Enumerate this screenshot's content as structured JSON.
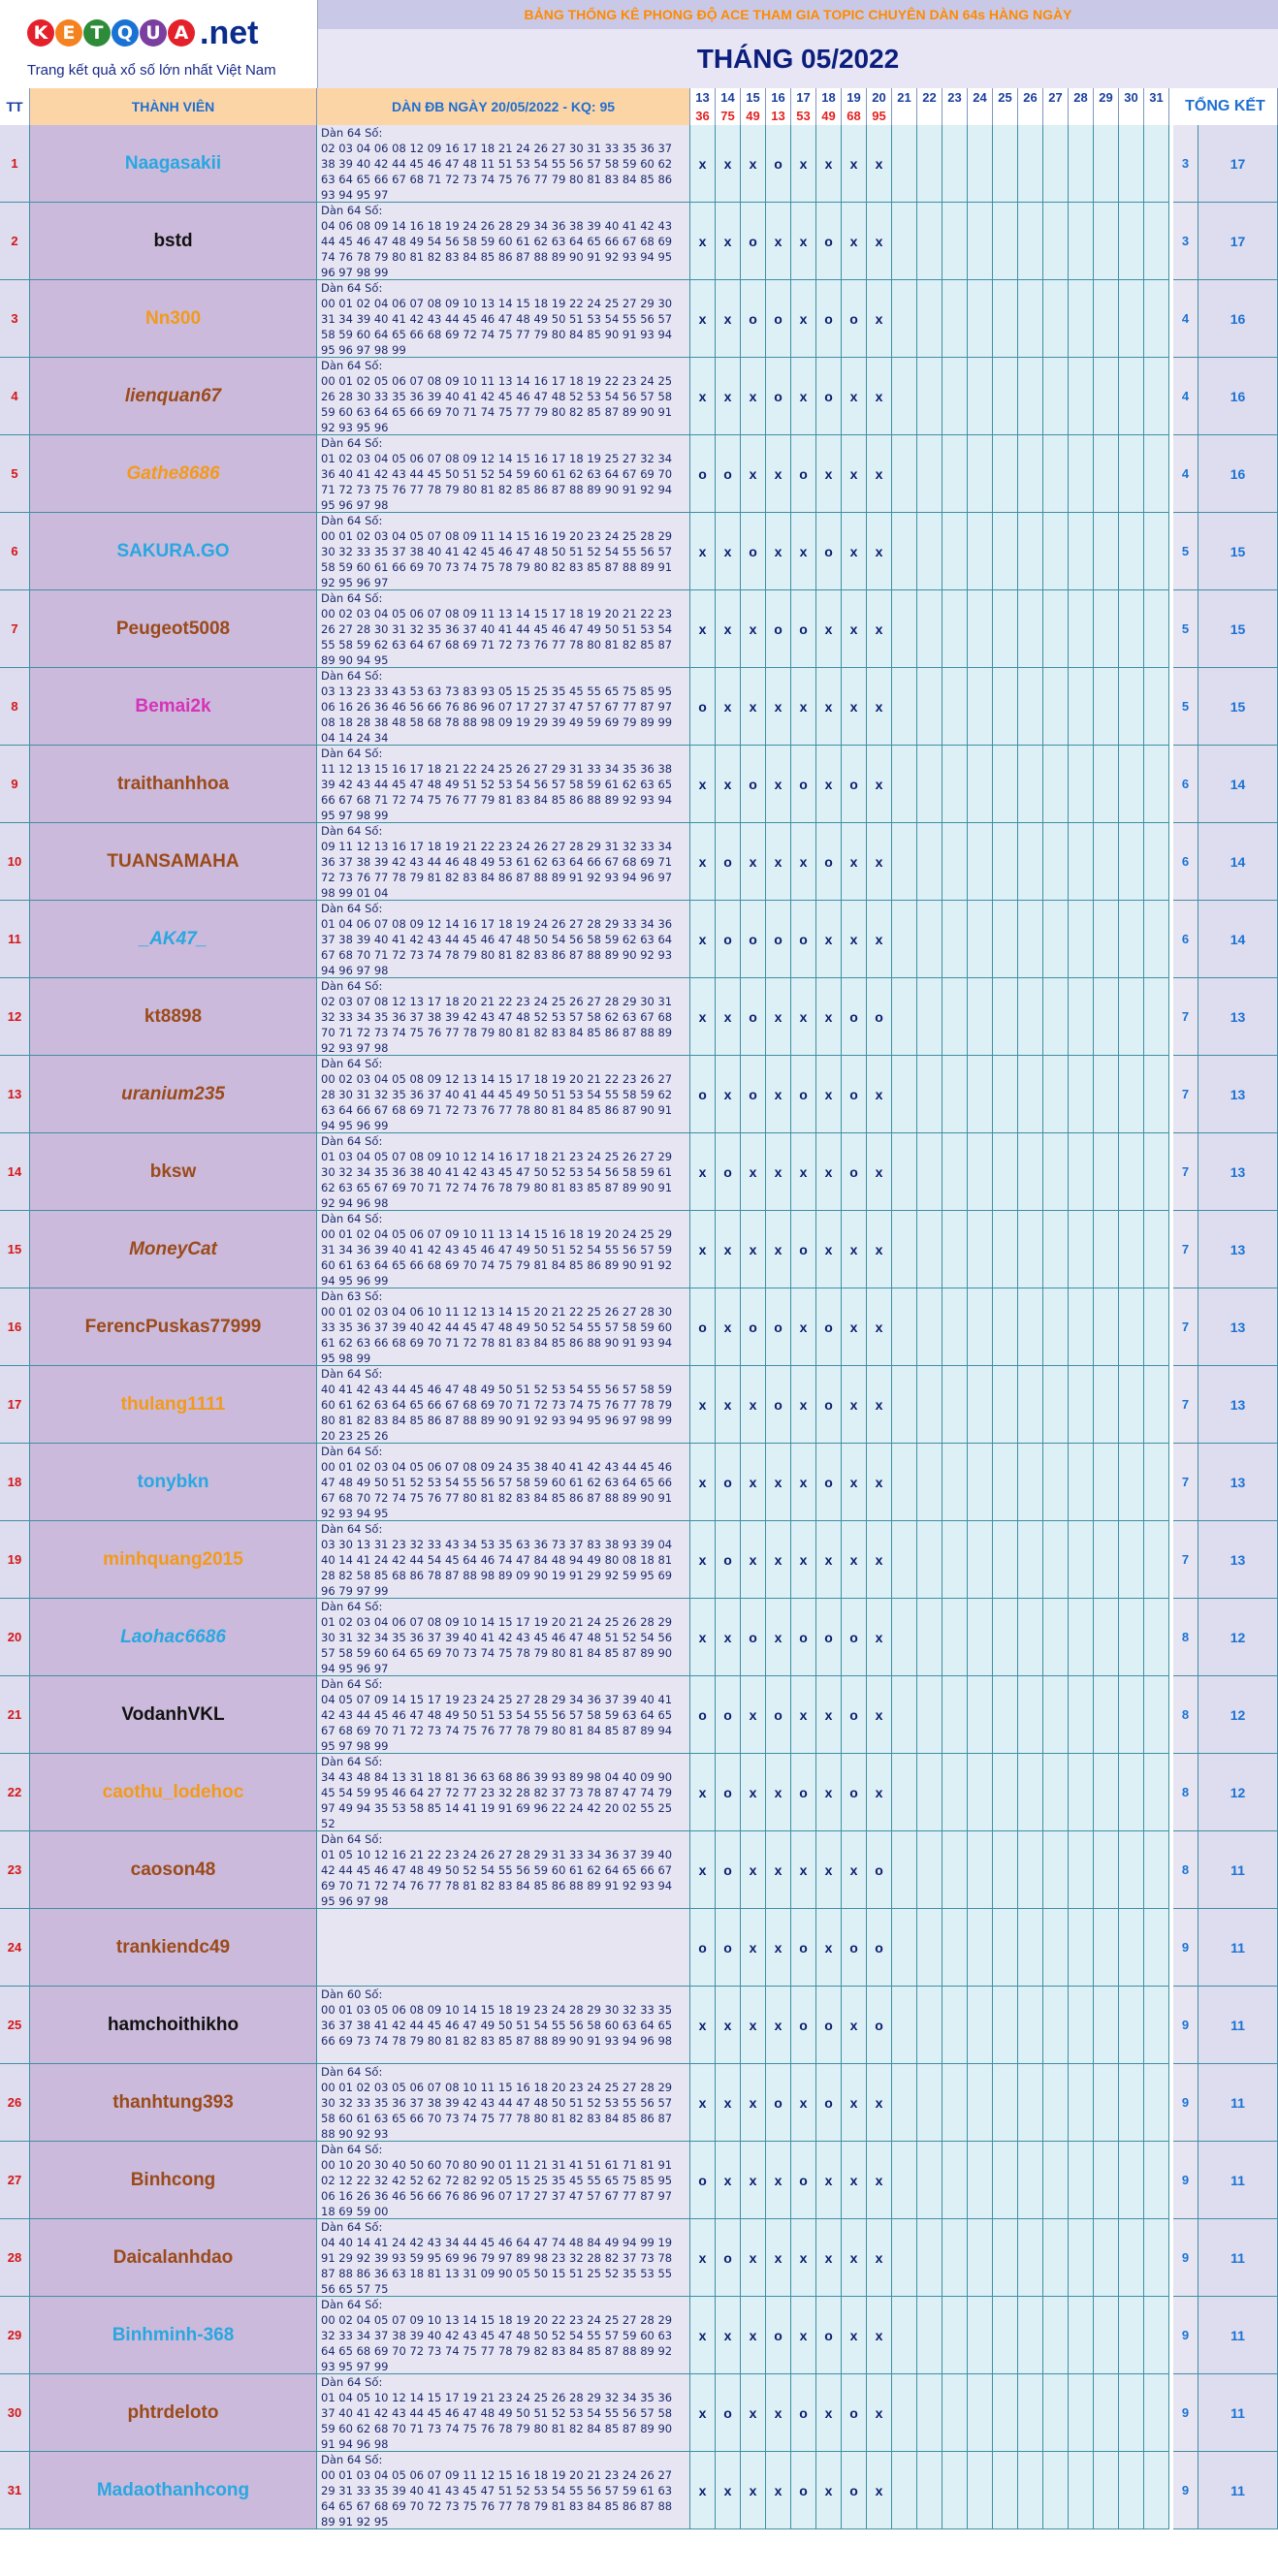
{
  "logo": {
    "letters": [
      "K",
      "E",
      "T",
      "Q",
      "U",
      "A"
    ],
    "letter_colors": [
      "#e4212a",
      "#f58220",
      "#2e8b3a",
      "#1a73d4",
      "#7b3fa0",
      "#e4212a"
    ],
    "tld": ".net",
    "tagline": "Trang kết quả xổ số lớn nhất Việt Nam"
  },
  "header": {
    "title": "BẢNG THỐNG KÊ PHONG ĐỘ ACE THAM GIA TOPIC CHUYÊN DÀN 64s HÀNG NGÀY",
    "month": "THÁNG 05/2022",
    "col_tt": "TT",
    "col_member": "THÀNH VIÊN",
    "col_dan": "DÀN ĐB NGÀY 20/05/2022 - KQ: 95",
    "col_total": "TỔNG KẾT",
    "days": [
      "13",
      "14",
      "15",
      "16",
      "17",
      "18",
      "19",
      "20",
      "21",
      "22",
      "23",
      "24",
      "25",
      "26",
      "27",
      "28",
      "29",
      "30",
      "31"
    ],
    "results": [
      "36",
      "75",
      "49",
      "13",
      "53",
      "49",
      "68",
      "95",
      "",
      "",
      "",
      "",
      "",
      "",
      "",
      "",
      "",
      "",
      ""
    ]
  },
  "rows": [
    {
      "tt": "1",
      "name": "Naagasakii",
      "color": "#29a7e1",
      "italic": false,
      "dan": "Dàn 64 Số:\n02 03 04 06 08 12 09 16 17 18 21 24 26 27 30 31 33 35 36 37 38 39 40 42 44 45 46 47 48 11 51 53 54 55 56 57 58 59 60 62 63 64 65 66 67 68 71 72 73 74 75 76 77 79 80 81 83 84 85 86 93 94 95 97",
      "marks": [
        "x",
        "x",
        "x",
        "o",
        "x",
        "x",
        "x",
        "x"
      ],
      "score": "3",
      "total": "17"
    },
    {
      "tt": "2",
      "name": "bstd",
      "color": "#111111",
      "italic": false,
      "dan": "Dàn 64 Số:\n04 06 08 09 14 16 18 19 24 26 28 29 34 36 38 39 40 41 42 43 44 45 46 47 48 49 54 56 58 59 60 61 62 63 64 65 66 67 68 69 74 76 78 79 80 81 82 83 84 85 86 87 88 89 90 91 92 93 94 95 96 97 98 99",
      "marks": [
        "x",
        "x",
        "o",
        "x",
        "x",
        "o",
        "x",
        "x"
      ],
      "score": "3",
      "total": "17"
    },
    {
      "tt": "3",
      "name": "Nn300",
      "color": "#f39a1a",
      "italic": false,
      "dan": "Dàn 64 Số:\n00 01 02 04 06 07 08 09 10 13 14 15 18 19 22 24 25 27 29 30 31 34 39 40 41 42 43 44 45 46 47 48 49 50 51 53 54 55 56 57 58 59 60 64 65 66 68 69 72 74 75 77 79 80 84 85 90 91 93 94 95 96 97 98 99",
      "marks": [
        "x",
        "x",
        "o",
        "o",
        "x",
        "o",
        "o",
        "x"
      ],
      "score": "4",
      "total": "16"
    },
    {
      "tt": "4",
      "name": "lienquan67",
      "color": "#9b4a1a",
      "italic": true,
      "dan": "Dàn 64 Số:\n00 01 02 05 06 07 08 09 10 11 13 14 16 17 18 19 22 23 24 25 26 28 30 33 35 36 39 40 41 42 45 46 47 48 52 53 54 56 57 58 59 60 63 64 65 66 69 70 71 74 75 77 79 80 82 85 87 89 90 91 92 93 95 96",
      "marks": [
        "x",
        "x",
        "x",
        "o",
        "x",
        "o",
        "x",
        "x"
      ],
      "score": "4",
      "total": "16"
    },
    {
      "tt": "5",
      "name": "Gathe8686",
      "color": "#f39a1a",
      "italic": true,
      "dan": "Dàn 64 Số:\n01 02 03 04 05 06 07 08 09 12 14 15 16 17 18 19 25 27 32 34 36 40 41 42 43 44 45 50 51 52 54 59 60 61 62 63 64 67 69 70 71 72 73 75 76 77 78 79 80 81 82 85 86 87 88 89 90 91 92 94 95 96 97 98",
      "marks": [
        "o",
        "o",
        "x",
        "x",
        "o",
        "x",
        "x",
        "x"
      ],
      "score": "4",
      "total": "16"
    },
    {
      "tt": "6",
      "name": "SAKURA.GO",
      "color": "#29a7e1",
      "italic": false,
      "dan": "Dàn 64 Số:\n00 01 02 03 04 05 07 08 09 11 14 15 16 19 20 23 24 25 28 29 30 32 33 35 37 38 40 41 42 45 46 47 48 50 51 52 54 55 56 57 58 59 60 61 66 69 70 73 74 75 78 79 80 82 83 85 87 88 89 91 92 95 96 97",
      "marks": [
        "x",
        "x",
        "o",
        "x",
        "x",
        "o",
        "x",
        "x"
      ],
      "score": "5",
      "total": "15"
    },
    {
      "tt": "7",
      "name": "Peugeot5008",
      "color": "#9b4a1a",
      "italic": false,
      "dan": "Dàn 64 Số:\n00 02 03 04 05 06 07 08 09 11 13 14 15 17 18 19 20 21 22 23 26 27 28 30 31 32 35 36 37 40 41 44 45 46 47 49 50 51 53 54 55 58 59 62 63 64 67 68 69 71 72 73 76 77 78 80 81 82 85 87 89 90 94 95",
      "marks": [
        "x",
        "x",
        "x",
        "o",
        "o",
        "x",
        "x",
        "x"
      ],
      "score": "5",
      "total": "15"
    },
    {
      "tt": "8",
      "name": "Bemai2k",
      "color": "#d633b8",
      "italic": false,
      "dan": "Dàn 64 Số:\n03 13 23 33 43 53 63 73 83 93 05 15 25 35 45 55 65 75 85 95 06 16 26 36 46 56 66 76 86 96 07 17 27 37 47 57 67 77 87 97 08 18 28 38 48 58 68 78 88 98 09 19 29 39 49 59 69 79 89 99 04 14 24 34",
      "marks": [
        "o",
        "x",
        "x",
        "x",
        "x",
        "x",
        "x",
        "x"
      ],
      "score": "5",
      "total": "15"
    },
    {
      "tt": "9",
      "name": "traithanhhoa",
      "color": "#9b4a1a",
      "italic": false,
      "dan": "Dàn 64 Số:\n11 12 13 15 16 17 18 21 22 24 25 26 27 29 31 33 34 35 36 38 39 42 43 44 45 47 48 49 51 52 53 54 56 57 58 59 61 62 63 65 66 67 68 71 72 74 75 76 77 79 81 83 84 85 86 88 89 92 93 94 95 97 98 99",
      "marks": [
        "x",
        "x",
        "o",
        "x",
        "o",
        "x",
        "o",
        "x"
      ],
      "score": "6",
      "total": "14"
    },
    {
      "tt": "10",
      "name": "TUANSAMAHA",
      "color": "#9b4a1a",
      "italic": false,
      "dan": "Dàn 64 Số:\n09 11 12 13 16 17 18 19 21 22 23 24 26 27 28 29 31 32 33 34 36 37 38 39 42 43 44 46 48 49 53 61 62 63 64 66 67 68 69 71 72 73 76 77 78 79 81 82 83 84 86 87 88 89 91 92 93 94 96 97 98 99 01 04",
      "marks": [
        "x",
        "o",
        "x",
        "x",
        "x",
        "o",
        "x",
        "x"
      ],
      "score": "6",
      "total": "14"
    },
    {
      "tt": "11",
      "name": "_AK47_",
      "color": "#29a7e1",
      "italic": true,
      "dan": "Dàn 64 Số:\n01 04 06 07 08 09 12 14 16 17 18 19 24 26 27 28 29 33 34 36 37 38 39 40 41 42 43 44 45 46 47 48 50 54 56 58 59 62 63 64 67 68 70 71 72 73 74 78 79 80 81 82 83 86 87 88 89 90 92 93 94 96 97 98",
      "marks": [
        "x",
        "o",
        "o",
        "o",
        "o",
        "x",
        "x",
        "x"
      ],
      "score": "6",
      "total": "14"
    },
    {
      "tt": "12",
      "name": "kt8898",
      "color": "#9b4a1a",
      "italic": false,
      "dan": "Dàn 64 Số:\n02 03 07 08 12 13 17 18 20 21 22 23 24 25 26 27 28 29 30 31 32 33 34 35 36 37 38 39 42 43 47 48 52 53 57 58 62 63 67 68 70 71 72 73 74 75 76 77 78 79 80 81 82 83 84 85 86 87 88 89 92 93 97 98",
      "marks": [
        "x",
        "x",
        "o",
        "x",
        "x",
        "x",
        "o",
        "o"
      ],
      "score": "7",
      "total": "13"
    },
    {
      "tt": "13",
      "name": "uranium235",
      "color": "#9b4a1a",
      "italic": true,
      "dan": "Dàn 64 Số:\n00 02 03 04 05 08 09 12 13 14 15 17 18 19 20 21 22 23 26 27 28 30 31 32 35 36 37 40 41 44 45 49 50 51 53 54 55 58 59 62 63 64 66 67 68 69 71 72 73 76 77 78 80 81 84 85 86 87 90 91 94 95 96 99",
      "marks": [
        "o",
        "x",
        "o",
        "x",
        "o",
        "x",
        "o",
        "x"
      ],
      "score": "7",
      "total": "13"
    },
    {
      "tt": "14",
      "name": "bksw",
      "color": "#9b4a1a",
      "italic": false,
      "dan": "Dàn 64 Số:\n01 03 04 05 07 08 09 10 12 14 16 17 18 21 23 24 25 26 27 29 30 32 34 35 36 38 40 41 42 43 45 47 50 52 53 54 56 58 59 61 62 63 65 67 69 70 71 72 74 76 78 79 80 81 83 85 87 89 90 91 92 94 96 98",
      "marks": [
        "x",
        "o",
        "x",
        "x",
        "x",
        "x",
        "o",
        "x"
      ],
      "score": "7",
      "total": "13"
    },
    {
      "tt": "15",
      "name": "MoneyCat",
      "color": "#9b4a1a",
      "italic": true,
      "dan": "Dàn 64 Số:\n00 01 02 04 05 06 07 09 10 11 13 14 15 16 18 19 20 24 25 29 31 34 36 39 40 41 42 43 45 46 47 49 50 51 52 54 55 56 57 59 60 61 63 64 65 66 68 69 70 74 75 79 81 84 85 86 89 90 91 92 94 95 96 99",
      "marks": [
        "x",
        "x",
        "x",
        "x",
        "o",
        "x",
        "x",
        "x"
      ],
      "score": "7",
      "total": "13"
    },
    {
      "tt": "16",
      "name": "FerencPuskas77999",
      "color": "#9b4a1a",
      "italic": false,
      "dan": "Dàn 63 Số:\n00 01 02 03 04 06 10 11 12 13 14 15 20 21 22 25 26 27 28 30 33 35 36 37 39 40 42 44 45 47 48 49 50 52 54 55 57 58 59 60 61 62 63 66 68 69 70 71 72 78 81 83 84 85 86 88 90 91 93 94 95 98 99",
      "marks": [
        "o",
        "x",
        "o",
        "o",
        "x",
        "o",
        "x",
        "x"
      ],
      "score": "7",
      "total": "13"
    },
    {
      "tt": "17",
      "name": "thulang1111",
      "color": "#f39a1a",
      "italic": false,
      "dan": "Dàn 64 Số:\n40 41 42 43 44 45 46 47 48 49 50 51 52 53 54 55 56 57 58 59 60 61 62 63 64 65 66 67 68 69 70 71 72 73 74 75 76 77 78 79 80 81 82 83 84 85 86 87 88 89 90 91 92 93 94 95 96 97 98 99 20 23 25 26",
      "marks": [
        "x",
        "x",
        "x",
        "o",
        "x",
        "o",
        "x",
        "x"
      ],
      "score": "7",
      "total": "13"
    },
    {
      "tt": "18",
      "name": "tonybkn",
      "color": "#29a7e1",
      "italic": false,
      "dan": "Dàn 64 Số:\n00 01 02 03 04 05 06 07 08 09 24 35 38 40 41 42 43 44 45 46 47 48 49 50 51 52 53 54 55 56 57 58 59 60 61 62 63 64 65 66 67 68 70 72 74 75 76 77 80 81 82 83 84 85 86 87 88 89 90 91 92 93 94 95",
      "marks": [
        "x",
        "o",
        "x",
        "x",
        "x",
        "o",
        "x",
        "x"
      ],
      "score": "7",
      "total": "13"
    },
    {
      "tt": "19",
      "name": "minhquang2015",
      "color": "#f39a1a",
      "italic": false,
      "dan": "Dàn 64 Số:\n03 30 13 31 23 32 33 43 34 53 35 63 36 73 37 83 38 93 39 04 40 14 41 24 42 44 54 45 64 46 74 47 84 48 94 49 80 08 18 81 28 82 58 85 68 86 78 87 88 98 89 09 90 19 91 29 92 59 95 69 96 79 97 99",
      "marks": [
        "x",
        "o",
        "x",
        "x",
        "x",
        "x",
        "x",
        "x"
      ],
      "score": "7",
      "total": "13"
    },
    {
      "tt": "20",
      "name": "Laohac6686",
      "color": "#29a7e1",
      "italic": true,
      "dan": "Dàn 64 Số:\n01 02 03 04 06 07 08 09 10 14 15 17 19 20 21 24 25 26 28 29 30 31 32 34 35 36 37 39 40 41 42 43 45 46 47 48 51 52 54 56 57 58 59 60 64 65 69 70 73 74 75 78 79 80 81 84 85 87 89 90 94 95 96 97",
      "marks": [
        "x",
        "x",
        "o",
        "x",
        "o",
        "o",
        "o",
        "x"
      ],
      "score": "8",
      "total": "12"
    },
    {
      "tt": "21",
      "name": "VodanhVKL",
      "color": "#111111",
      "italic": false,
      "dan": "Dàn 64 Số:\n04 05 07 09 14 15 17 19 23 24 25 27 28 29 34 36 37 39 40 41 42 43 44 45 46 47 48 49 50 51 53 54 55 56 57 58 59 63 64 65 67 68 69 70 71 72 73 74 75 76 77 78 79 80 81 84 85 87 89 94 95 97 98 99",
      "marks": [
        "o",
        "o",
        "x",
        "o",
        "x",
        "x",
        "o",
        "x"
      ],
      "score": "8",
      "total": "12"
    },
    {
      "tt": "22",
      "name": "caothu_lodehoc",
      "color": "#f39a1a",
      "italic": false,
      "dan": "Dàn 64 Số:\n34 43 48 84 13 31 18 81 36 63 68 86 39 93 89 98 04 40 09 90 45 54 59 95 46 64 27 72 77 23 32 28 82 37 73 78 87 47 74 79 97 49 94 35 53 58 85 14 41 19 91 69 96 22 24 42 20 02 55 25 52",
      "marks": [
        "x",
        "o",
        "x",
        "x",
        "o",
        "x",
        "o",
        "x"
      ],
      "score": "8",
      "total": "12"
    },
    {
      "tt": "23",
      "name": "caoson48",
      "color": "#9b4a1a",
      "italic": false,
      "dan": "Dàn 64 Số:\n01 05 10 12 16 21 22 23 24 26 27 28 29 31 33 34 36 37 39 40 42 44 45 46 47 48 49 50 52 54 55 56 59 60 61 62 64 65 66 67 69 70 71 72 74 76 77 78 81 82 83 84 85 86 88 89 91 92 93 94 95 96 97 98",
      "marks": [
        "x",
        "o",
        "x",
        "x",
        "x",
        "x",
        "x",
        "o"
      ],
      "score": "8",
      "total": "11"
    },
    {
      "tt": "24",
      "name": "trankiendc49",
      "color": "#9b4a1a",
      "italic": false,
      "dan": "",
      "marks": [
        "o",
        "o",
        "x",
        "x",
        "o",
        "x",
        "o",
        "o"
      ],
      "score": "9",
      "total": "11"
    },
    {
      "tt": "25",
      "name": "hamchoithikho",
      "color": "#111111",
      "italic": false,
      "dan": "Dàn 60 Số:\n00 01 03 05 06 08 09 10 14 15 18 19 23 24 28 29 30 32 33 35 36 37 38 41 42 44 45 46 47 49 50 51 54 55 56 58 60 63 64 65 66 69 73 74 78 79 80 81 82 83 85 87 88 89 90 91 93 94 96 98",
      "marks": [
        "x",
        "x",
        "x",
        "x",
        "o",
        "o",
        "x",
        "o"
      ],
      "score": "9",
      "total": "11"
    },
    {
      "tt": "26",
      "name": "thanhtung393",
      "color": "#9b4a1a",
      "italic": false,
      "dan": "Dàn 64 Số:\n00 01 02 03 05 06 07 08 10 11 15 16 18 20 23 24 25 27 28 29 30 32 33 35 36 37 38 39 42 43 44 47 48 50 51 52 53 55 56 57 58 60 61 63 65 66 70 73 74 75 77 78 80 81 82 83 84 85 86 87 88 90 92 93",
      "marks": [
        "x",
        "x",
        "x",
        "o",
        "x",
        "o",
        "x",
        "x"
      ],
      "score": "9",
      "total": "11"
    },
    {
      "tt": "27",
      "name": "Binhcong",
      "color": "#9b4a1a",
      "italic": false,
      "dan": "Dàn 64 Số:\n00 10 20 30 40 50 60 70 80 90 01 11 21 31 41 51 61 71 81 91 02 12 22 32 42 52 62 72 82 92 05 15 25 35 45 55 65 75 85 95 06 16 26 36 46 56 66 76 86 96 07 17 27 37 47 57 67 77 87 97 18 69 59 00",
      "marks": [
        "o",
        "x",
        "x",
        "x",
        "o",
        "x",
        "x",
        "x"
      ],
      "score": "9",
      "total": "11"
    },
    {
      "tt": "28",
      "name": "Daicalanhdao",
      "color": "#9b4a1a",
      "italic": false,
      "dan": "Dàn 64 Số:\n04 40 14 41 24 42 43 34 44 45 46 64 47 74 48 84 49 94 99 19 91 29 92 39 93 59 95 69 96 79 97 89 98 23 32 28 82 37 73 78 87 88 86 36 63 18 81 13 31 09 90 05 50 15 51 25 52 35 53 55 56 65 57 75",
      "marks": [
        "x",
        "o",
        "x",
        "x",
        "x",
        "x",
        "x",
        "x"
      ],
      "score": "9",
      "total": "11"
    },
    {
      "tt": "29",
      "name": "Binhminh-368",
      "color": "#29a7e1",
      "italic": false,
      "dan": "Dàn 64 Số:\n00 02 04 05 07 09 10 13 14 15 18 19 20 22 23 24 25 27 28 29 32 33 34 37 38 39 40 42 43 45 47 48 50 52 54 55 57 59 60 63 64 65 68 69 70 72 73 74 75 77 78 79 82 83 84 85 87 88 89 92 93 95 97 99",
      "marks": [
        "x",
        "x",
        "x",
        "o",
        "x",
        "o",
        "x",
        "x"
      ],
      "score": "9",
      "total": "11"
    },
    {
      "tt": "30",
      "name": "phtrdeloto",
      "color": "#9b4a1a",
      "italic": false,
      "dan": "Dàn 64 Số:\n01 04 05 10 12 14 15 17 19 21 23 24 25 26 28 29 32 34 35 36 37 40 41 42 43 44 45 46 47 48 49 50 51 52 53 54 55 56 57 58 59 60 62 68 70 71 73 74 75 76 78 79 80 81 82 84 85 87 89 90 91 94 96 98",
      "marks": [
        "x",
        "o",
        "x",
        "x",
        "o",
        "x",
        "o",
        "x"
      ],
      "score": "9",
      "total": "11"
    },
    {
      "tt": "31",
      "name": "Madaothanhcong",
      "color": "#29a7e1",
      "italic": false,
      "dan": "Dàn 64 Số:\n00 01 03 04 05 06 07 09 11 12 15 16 18 19 20 21 23 24 26 27 29 31 33 35 39 40 41 43 45 47 51 52 53 54 55 56 57 59 61 63 64 65 67 68 69 70 72 73 75 76 77 78 79 81 83 84 85 86 87 88 89 91 92 95",
      "marks": [
        "x",
        "x",
        "x",
        "x",
        "o",
        "x",
        "o",
        "x"
      ],
      "score": "9",
      "total": "11"
    }
  ]
}
